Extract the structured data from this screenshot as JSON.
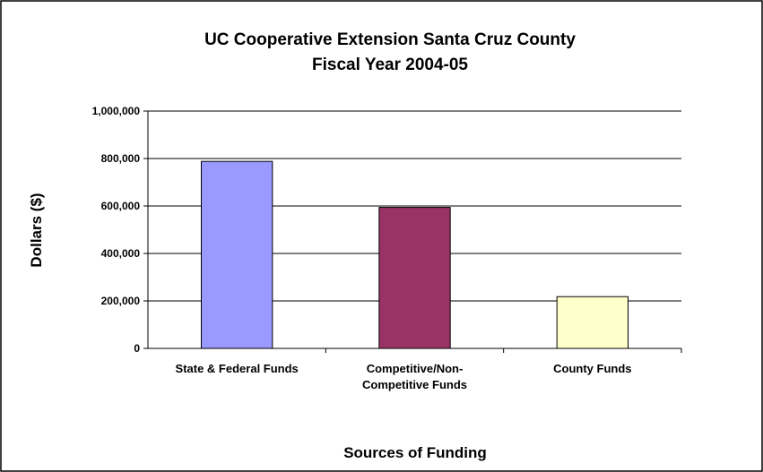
{
  "chart_data": {
    "type": "bar",
    "title": "UC Cooperative Extension Santa Cruz County",
    "subtitle": "Fiscal Year 2004-05",
    "xlabel": "Sources of Funding",
    "ylabel": "Dollars ($)",
    "ylim": [
      0,
      1000000
    ],
    "ytick_labels": [
      "0",
      "200,000",
      "400,000",
      "600,000",
      "800,000",
      "1,000,000"
    ],
    "ytick_values": [
      0,
      200000,
      400000,
      600000,
      800000,
      1000000
    ],
    "categories": [
      [
        "State & Federal Funds"
      ],
      [
        "Competitive/Non-",
        "Competitive Funds"
      ],
      [
        "County Funds"
      ]
    ],
    "values": [
      788000,
      594000,
      218000
    ],
    "colors": [
      "#9999ff",
      "#993366",
      "#ffffcc"
    ],
    "grid": true,
    "legend": "none"
  }
}
